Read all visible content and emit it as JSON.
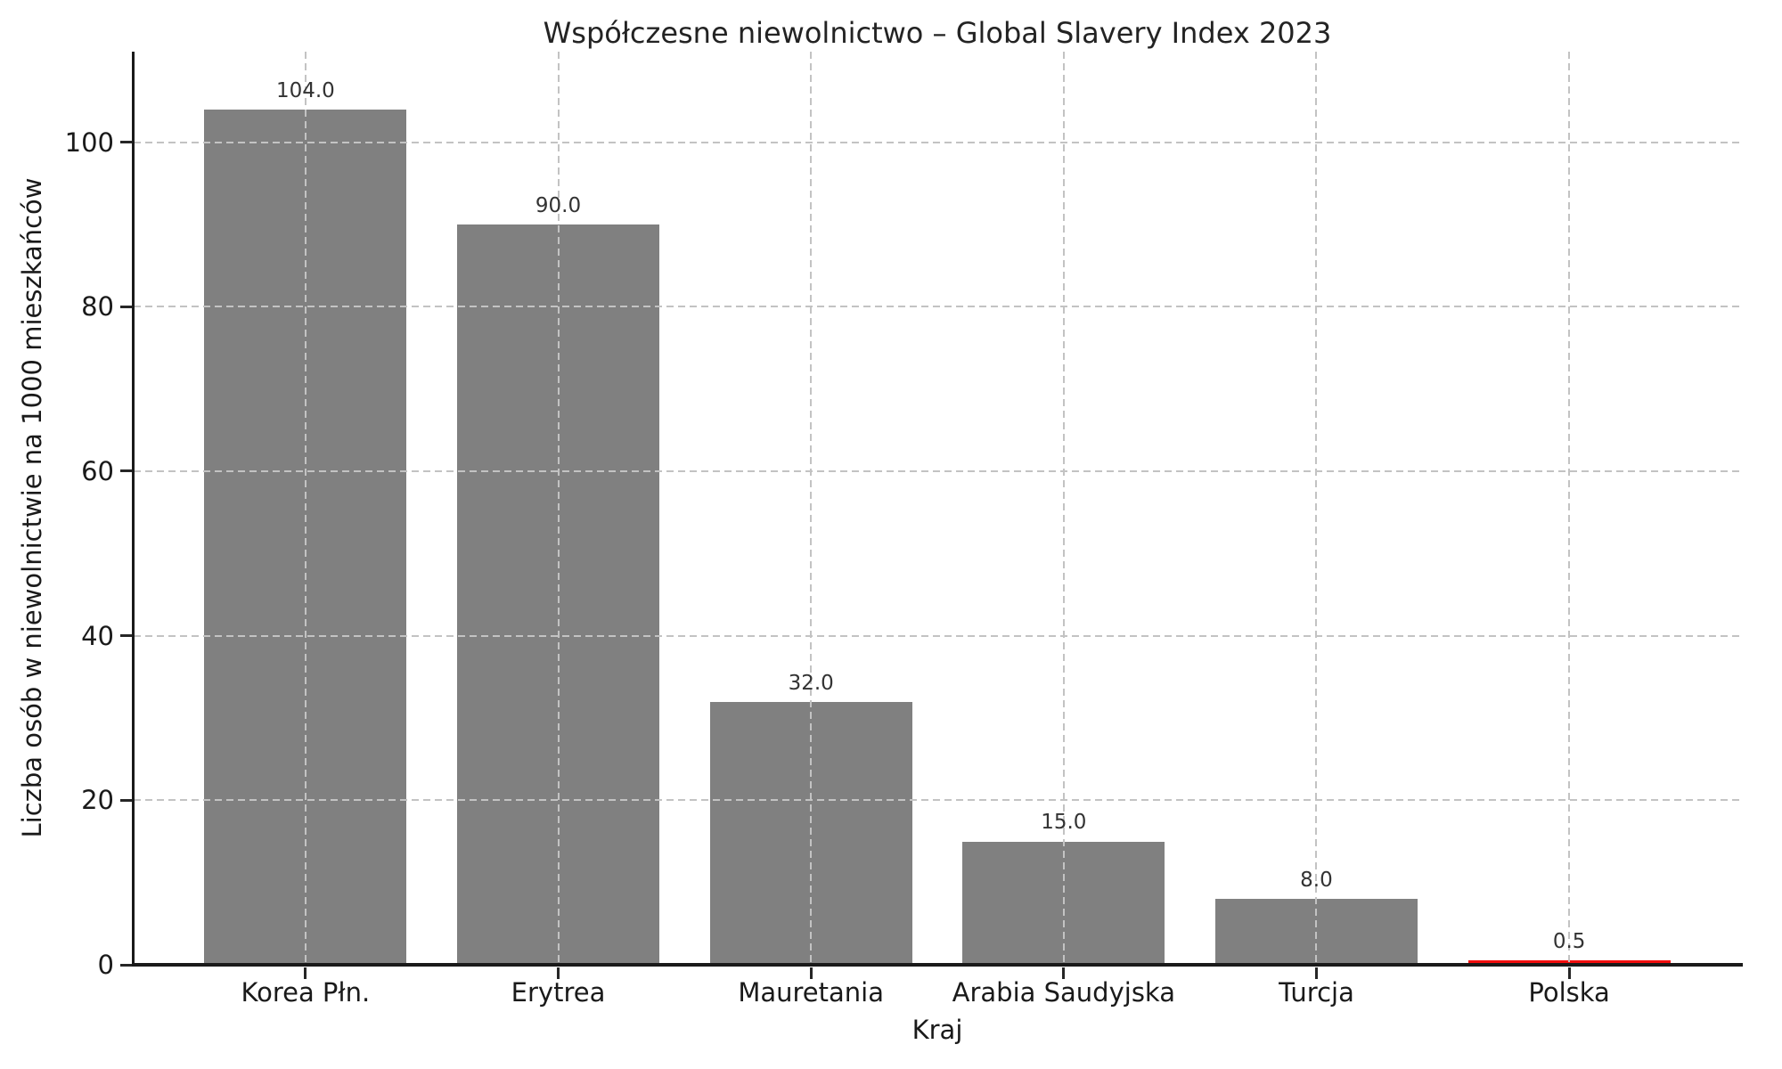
{
  "chart_data": {
    "type": "bar",
    "title": "Współczesne niewolnictwo – Global Slavery Index 2023",
    "xlabel": "Kraj",
    "ylabel": "Liczba osób w niewolnictwie na 1000 mieszkańców",
    "categories": [
      "Korea Płn.",
      "Erytrea",
      "Mauretania",
      "Arabia Saudyjska",
      "Turcja",
      "Polska"
    ],
    "values": [
      104.0,
      90.0,
      32.0,
      15.0,
      8.0,
      0.5
    ],
    "value_labels": [
      "104.0",
      "90.0",
      "32.0",
      "15.0",
      "8.0",
      "0.5"
    ],
    "yticks": [
      0,
      20,
      40,
      60,
      80,
      100
    ],
    "ylim": [
      0,
      111
    ],
    "grid": true,
    "legend": false,
    "bar_colors": [
      "#808080",
      "#808080",
      "#808080",
      "#808080",
      "#808080",
      "#f20d0d"
    ],
    "colors": {
      "bar_default": "#808080",
      "bar_highlight": "#f20d0d",
      "grid": "#c3c3c3",
      "spine": "#1a1a1a",
      "text": "#1a1a1a",
      "value_label": "#333333"
    }
  }
}
